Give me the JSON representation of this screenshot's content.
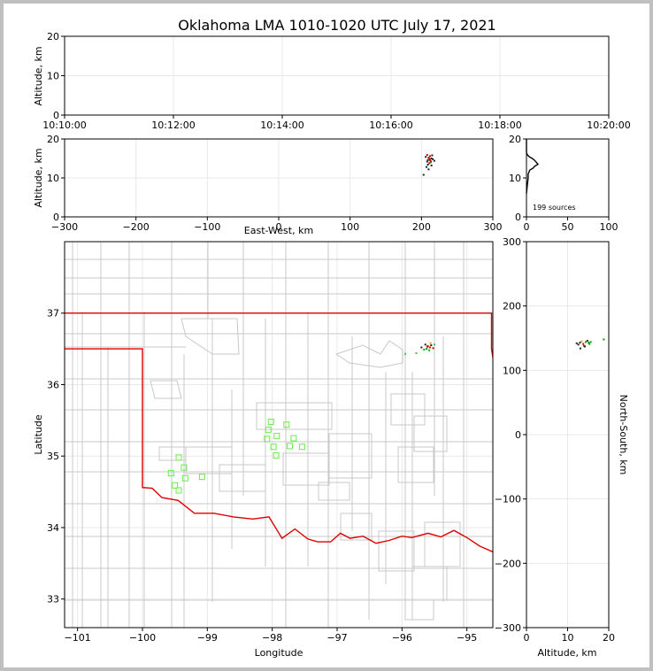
{
  "title": "Oklahoma LMA 1010-1020 UTC July 17, 2021",
  "chart_data": [
    {
      "panel": "time-altitude",
      "type": "scatter",
      "xlabel": "",
      "ylabel": "Altitude, km",
      "xticks": [
        "10:10:00",
        "10:12:00",
        "10:14:00",
        "10:16:00",
        "10:18:00",
        "10:20:00"
      ],
      "xlim": [
        "10:10:00",
        "10:20:00"
      ],
      "yticks": [
        0,
        10,
        20
      ],
      "ylim": [
        0,
        20
      ],
      "grid": true
    },
    {
      "panel": "east-west-altitude",
      "type": "scatter",
      "xlabel": "East-West, km",
      "ylabel": "Altitude, km",
      "xticks": [
        -300,
        -200,
        -100,
        0,
        100,
        200,
        300
      ],
      "xlim": [
        -300,
        300
      ],
      "yticks": [
        0,
        10,
        20
      ],
      "ylim": [
        0,
        20
      ],
      "grid": true,
      "points": [
        {
          "x": 210,
          "y": 15.2,
          "c": "#cc0000"
        },
        {
          "x": 212,
          "y": 14.6,
          "c": "#cc0000"
        },
        {
          "x": 214,
          "y": 15.0,
          "c": "#222222"
        },
        {
          "x": 208,
          "y": 14.2,
          "c": "#222222"
        },
        {
          "x": 211,
          "y": 13.8,
          "c": "#cc0000"
        },
        {
          "x": 209,
          "y": 13.4,
          "c": "#222222"
        },
        {
          "x": 213,
          "y": 14.0,
          "c": "#009900"
        },
        {
          "x": 207,
          "y": 12.8,
          "c": "#222222"
        },
        {
          "x": 210,
          "y": 12.2,
          "c": "#222222"
        },
        {
          "x": 216,
          "y": 14.8,
          "c": "#222222"
        },
        {
          "x": 212,
          "y": 15.6,
          "c": "#cc0000"
        },
        {
          "x": 218,
          "y": 14.4,
          "c": "#222222"
        },
        {
          "x": 206,
          "y": 15.4,
          "c": "#222222"
        },
        {
          "x": 214,
          "y": 13.2,
          "c": "#222222"
        },
        {
          "x": 203,
          "y": 10.8,
          "c": "#222222"
        },
        {
          "x": 211,
          "y": 14.9,
          "c": "#cc0000"
        },
        {
          "x": 213,
          "y": 14.3,
          "c": "#cc0000"
        },
        {
          "x": 209,
          "y": 14.6,
          "c": "#222222"
        },
        {
          "x": 215,
          "y": 15.8,
          "c": "#222222"
        },
        {
          "x": 208,
          "y": 15.9,
          "c": "#cc0000"
        }
      ]
    },
    {
      "panel": "altitude-histogram",
      "type": "line",
      "xticks": [
        0,
        50,
        100
      ],
      "xlim": [
        0,
        100
      ],
      "yticks": [
        0,
        10,
        20
      ],
      "ylim": [
        0,
        20
      ],
      "annotation": "199 sources",
      "profile": [
        {
          "count": 0,
          "alt": 6
        },
        {
          "count": 1,
          "alt": 8
        },
        {
          "count": 2,
          "alt": 10
        },
        {
          "count": 2,
          "alt": 11
        },
        {
          "count": 4,
          "alt": 12
        },
        {
          "count": 8,
          "alt": 12.5
        },
        {
          "count": 10,
          "alt": 13
        },
        {
          "count": 14,
          "alt": 13.5
        },
        {
          "count": 12,
          "alt": 14
        },
        {
          "count": 10,
          "alt": 14.5
        },
        {
          "count": 7,
          "alt": 15
        },
        {
          "count": 3,
          "alt": 15.5
        },
        {
          "count": 1,
          "alt": 16
        },
        {
          "count": 0,
          "alt": 16.5
        },
        {
          "count": 0,
          "alt": 20
        }
      ]
    },
    {
      "panel": "plan-view",
      "type": "scatter",
      "xlabel": "Longitude",
      "ylabel": "Latitude",
      "xticks": [
        -101,
        -100,
        -99,
        -98,
        -97,
        -96,
        -95
      ],
      "xlim": [
        -101.2,
        -94.6
      ],
      "yticks": [
        33,
        34,
        35,
        36,
        37
      ],
      "ylim": [
        32.6,
        38.0
      ],
      "grid": true,
      "stations": [
        {
          "lon": -98.02,
          "lat": 35.48
        },
        {
          "lon": -98.06,
          "lat": 35.37
        },
        {
          "lon": -98.08,
          "lat": 35.24
        },
        {
          "lon": -97.93,
          "lat": 35.28
        },
        {
          "lon": -97.78,
          "lat": 35.44
        },
        {
          "lon": -97.67,
          "lat": 35.25
        },
        {
          "lon": -97.73,
          "lat": 35.14
        },
        {
          "lon": -97.54,
          "lat": 35.13
        },
        {
          "lon": -97.98,
          "lat": 35.13
        },
        {
          "lon": -97.94,
          "lat": 35.01
        },
        {
          "lon": -99.44,
          "lat": 34.98
        },
        {
          "lon": -99.36,
          "lat": 34.84
        },
        {
          "lon": -99.56,
          "lat": 34.76
        },
        {
          "lon": -99.34,
          "lat": 34.69
        },
        {
          "lon": -99.08,
          "lat": 34.71
        },
        {
          "lon": -99.5,
          "lat": 34.59
        },
        {
          "lon": -99.44,
          "lat": 34.52
        }
      ],
      "points": [
        {
          "lon": -95.6,
          "lat": 36.54,
          "c": "#cc0000"
        },
        {
          "lon": -95.57,
          "lat": 36.52,
          "c": "#cc0000"
        },
        {
          "lon": -95.62,
          "lat": 36.5,
          "c": "#009900"
        },
        {
          "lon": -95.55,
          "lat": 36.55,
          "c": "#222222"
        },
        {
          "lon": -95.66,
          "lat": 36.49,
          "c": "#00aa00"
        },
        {
          "lon": -95.58,
          "lat": 36.48,
          "c": "#00aa00"
        },
        {
          "lon": -95.52,
          "lat": 36.51,
          "c": "#cc0000"
        },
        {
          "lon": -95.5,
          "lat": 36.56,
          "c": "#33cc33"
        },
        {
          "lon": -95.64,
          "lat": 36.56,
          "c": "#222222"
        },
        {
          "lon": -95.7,
          "lat": 36.52,
          "c": "#222222"
        },
        {
          "lon": -95.95,
          "lat": 36.43,
          "c": "#33cc33"
        },
        {
          "lon": -95.78,
          "lat": 36.44,
          "c": "#33cc33"
        },
        {
          "lon": -95.56,
          "lat": 36.58,
          "c": "#ff8800"
        },
        {
          "lon": -95.61,
          "lat": 36.53,
          "c": "#cc0000"
        }
      ]
    },
    {
      "panel": "altitude-north-south",
      "type": "scatter",
      "xlabel": "Altitude, km",
      "ylabel": "North-South, km",
      "xticks": [
        0,
        10,
        20
      ],
      "xlim": [
        0,
        20
      ],
      "yticks": [
        -300,
        -200,
        -100,
        0,
        100,
        200,
        300
      ],
      "ylim": [
        -300,
        300
      ],
      "grid": true,
      "points": [
        {
          "alt": 13.0,
          "ns": 143,
          "c": "#222222"
        },
        {
          "alt": 13.8,
          "ns": 141,
          "c": "#cc0000"
        },
        {
          "alt": 14.4,
          "ns": 144,
          "c": "#009900"
        },
        {
          "alt": 15.1,
          "ns": 143,
          "c": "#009900"
        },
        {
          "alt": 12.6,
          "ns": 140,
          "c": "#222222"
        },
        {
          "alt": 14.0,
          "ns": 138,
          "c": "#cc0000"
        },
        {
          "alt": 13.4,
          "ns": 145,
          "c": "#ff8800"
        },
        {
          "alt": 14.8,
          "ns": 146,
          "c": "#222222"
        },
        {
          "alt": 12.2,
          "ns": 142,
          "c": "#222222"
        },
        {
          "alt": 15.6,
          "ns": 144,
          "c": "#009900"
        },
        {
          "alt": 18.8,
          "ns": 148,
          "c": "#009900"
        },
        {
          "alt": 13.1,
          "ns": 134,
          "c": "#222222"
        },
        {
          "alt": 14.2,
          "ns": 137,
          "c": "#222222"
        },
        {
          "alt": 15.3,
          "ns": 141,
          "c": "#009900"
        }
      ]
    }
  ],
  "colors": {
    "frame": "#c0c0c0",
    "state_border": "#dd0000",
    "county_lines": "#c8c8c8",
    "station_marker": "#66ee44",
    "grid": "#e8e8e8"
  }
}
